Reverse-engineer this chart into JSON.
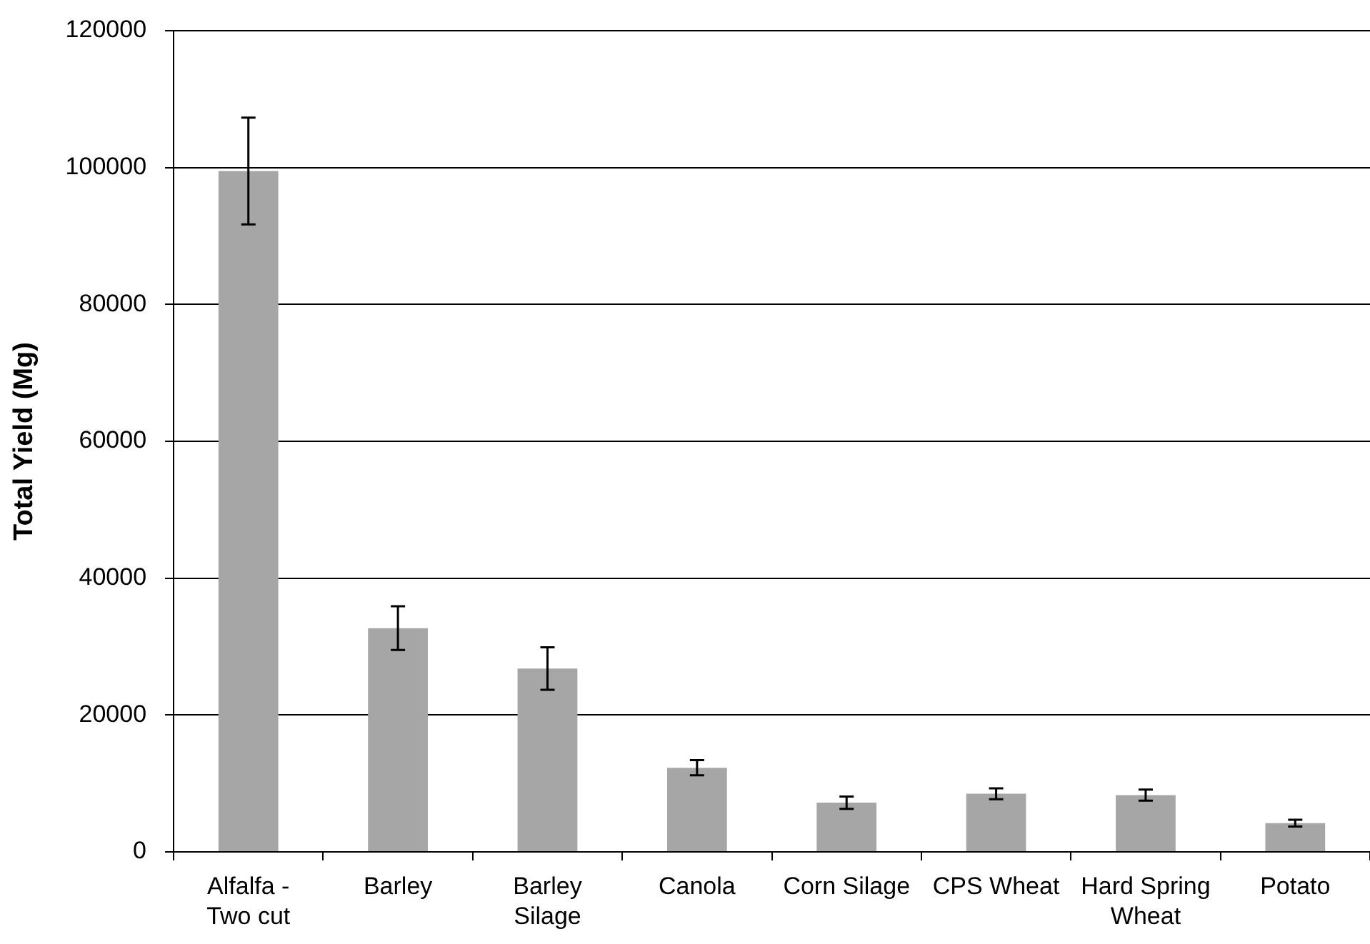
{
  "chart_data": {
    "type": "bar",
    "ylabel": "Total Yield (Mg)",
    "categories": [
      "Alfalfa - Two cut",
      "Barley",
      "Barley Silage",
      "Canola",
      "Corn Silage",
      "CPS Wheat",
      "Hard Spring Wheat",
      "Potato"
    ],
    "values": [
      99500,
      32700,
      26800,
      12300,
      7200,
      8500,
      8300,
      4200
    ],
    "errors": [
      7800,
      3200,
      3100,
      1100,
      900,
      800,
      800,
      500
    ],
    "color": "#a6a6a6",
    "ylim": [
      0,
      120000
    ],
    "yticks": [
      0,
      20000,
      40000,
      60000,
      80000,
      100000,
      120000
    ],
    "grid": "y"
  }
}
